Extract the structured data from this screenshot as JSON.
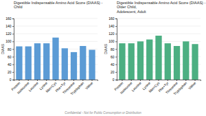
{
  "chart_data": [
    {
      "type": "bar",
      "title": "Digestible Indispensable Amino Acid Score (DIAAS) - Child",
      "ylabel": "DIAAS",
      "categories": [
        "Protein",
        "Isoleucine",
        "Leucine",
        "Lysine",
        "Met+Cys",
        "Phe+Tyr",
        "Threonine",
        "Tryptophan",
        "Valine"
      ],
      "values": [
        87,
        87,
        95,
        95,
        110,
        82,
        72,
        88,
        78
      ],
      "color": "#5B9BD5",
      "ylim": [
        0,
        160
      ],
      "yticks": [
        0,
        20,
        40,
        60,
        80,
        100,
        120,
        140,
        160
      ],
      "grid": true,
      "annotations": [
        "Confidential - Not for Public Consumption or Distribution"
      ]
    },
    {
      "type": "bar",
      "title": "Digestible Indispensable Amino Acid Score (DIAAS) - Older Child,\nAdolescent, Adult",
      "ylabel": "DIAAS",
      "categories": [
        "Protein",
        "Isoleucine",
        "Leucine",
        "Lysine",
        "Met+Cys",
        "Phe+Tyr",
        "Threonine",
        "Tryptophan",
        "Valine"
      ],
      "values": [
        95,
        95,
        100,
        105,
        115,
        95,
        88,
        100,
        93
      ],
      "color": "#4CAF82",
      "ylim": [
        0,
        160
      ],
      "yticks": [
        0,
        20,
        40,
        60,
        80,
        100,
        120,
        140,
        160
      ],
      "grid": true
    }
  ]
}
